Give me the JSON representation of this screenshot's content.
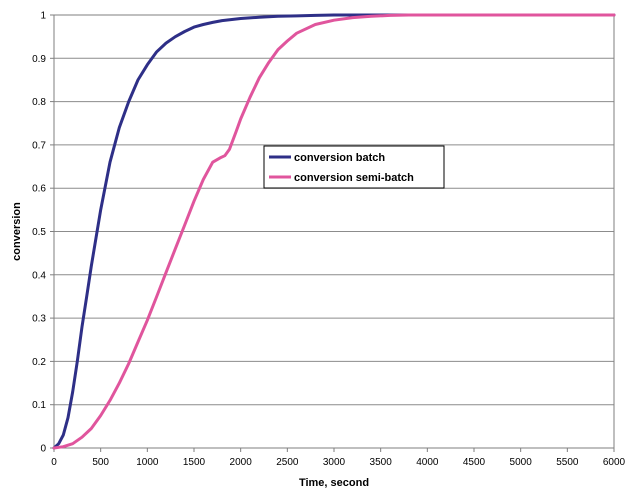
{
  "chart_data": {
    "type": "line",
    "title": "",
    "xlabel": "Time, second",
    "ylabel": "conversion",
    "xlim": [
      0,
      6000
    ],
    "ylim": [
      0,
      1
    ],
    "xticks": [
      0,
      500,
      1000,
      1500,
      2000,
      2500,
      3000,
      3500,
      4000,
      4500,
      5000,
      5500,
      6000
    ],
    "yticks": [
      0,
      0.1,
      0.2,
      0.3,
      0.4,
      0.5,
      0.6,
      0.7,
      0.8,
      0.9,
      1
    ],
    "grid": "horizontal",
    "legend_position": "center-right",
    "series": [
      {
        "name": "conversion batch",
        "color": "#2e2f87",
        "x": [
          0,
          50,
          100,
          150,
          200,
          250,
          300,
          350,
          400,
          500,
          600,
          700,
          800,
          900,
          1000,
          1100,
          1200,
          1300,
          1400,
          1500,
          1600,
          1700,
          1800,
          2000,
          2200,
          2400,
          2600,
          2800,
          3000,
          3500,
          4000,
          5000,
          6000
        ],
        "y": [
          0,
          0.01,
          0.03,
          0.07,
          0.13,
          0.2,
          0.28,
          0.35,
          0.42,
          0.55,
          0.66,
          0.74,
          0.8,
          0.85,
          0.885,
          0.915,
          0.935,
          0.95,
          0.962,
          0.972,
          0.978,
          0.983,
          0.987,
          0.992,
          0.995,
          0.997,
          0.998,
          0.999,
          1,
          1,
          1,
          1,
          1
        ]
      },
      {
        "name": "conversion semi-batch",
        "color": "#e0559d",
        "x": [
          0,
          100,
          200,
          300,
          400,
          500,
          600,
          700,
          800,
          900,
          1000,
          1100,
          1200,
          1300,
          1400,
          1500,
          1600,
          1700,
          1780,
          1830,
          1880,
          1950,
          2000,
          2100,
          2200,
          2300,
          2400,
          2500,
          2600,
          2800,
          3000,
          3200,
          3400,
          3600,
          3800,
          4000,
          4500,
          5000,
          6000
        ],
        "y": [
          0,
          0.003,
          0.01,
          0.025,
          0.045,
          0.075,
          0.11,
          0.15,
          0.195,
          0.245,
          0.295,
          0.35,
          0.405,
          0.46,
          0.515,
          0.57,
          0.62,
          0.66,
          0.67,
          0.675,
          0.69,
          0.73,
          0.76,
          0.81,
          0.855,
          0.89,
          0.92,
          0.94,
          0.958,
          0.978,
          0.988,
          0.994,
          0.997,
          0.999,
          1,
          1,
          1,
          1,
          1
        ]
      }
    ]
  }
}
